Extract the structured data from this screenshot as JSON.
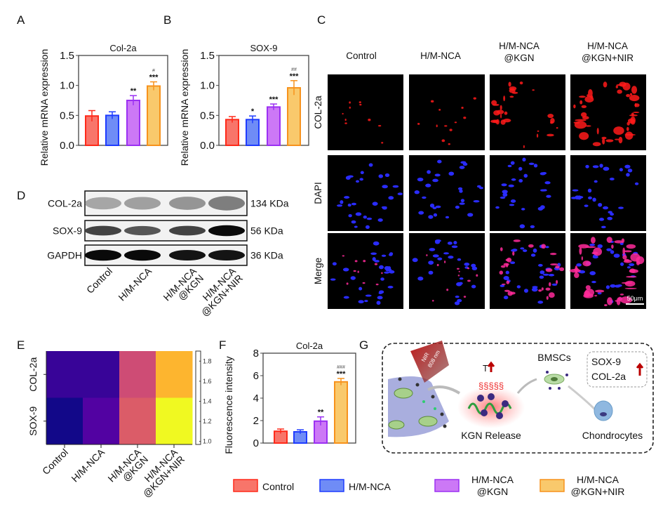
{
  "panels": {
    "a": "A",
    "b": "B",
    "c": "C",
    "d": "D",
    "e": "E",
    "f": "F",
    "g": "G"
  },
  "groups": [
    [
      "Control"
    ],
    [
      "H/M-NCA"
    ],
    [
      "H/M-NCA",
      "@KGN"
    ],
    [
      "H/M-NCA",
      "@KGN+NIR"
    ]
  ],
  "colors": {
    "fills": [
      "#f8756a",
      "#6f8cf6",
      "#cc78f6",
      "#f9c96c"
    ],
    "strokes": [
      "#ff2a1a",
      "#1f3cff",
      "#9b30f2",
      "#f7921c"
    ]
  },
  "chart_data": [
    {
      "id": "A",
      "type": "bar",
      "title": "Col-2a",
      "ylabel": "Relative mRNA expression",
      "ylim": [
        0,
        1.5
      ],
      "yticks": [
        "0.0",
        "0.5",
        "1.0",
        "1.5"
      ],
      "categories": [
        "Control",
        "H/M-NCA",
        "H/M-NCA@KGN",
        "H/M-NCA@KGN+NIR"
      ],
      "values": [
        0.49,
        0.5,
        0.75,
        0.99
      ],
      "errors": [
        0.09,
        0.06,
        0.08,
        0.07
      ],
      "significance": [
        "",
        "",
        "**",
        "***"
      ],
      "significance_vs_group": [
        "",
        "",
        "",
        "#"
      ]
    },
    {
      "id": "B",
      "type": "bar",
      "title": "SOX-9",
      "ylabel": "Relative mRNA expression",
      "ylim": [
        0,
        1.5
      ],
      "yticks": [
        "0.0",
        "0.5",
        "1.0",
        "1.5"
      ],
      "categories": [
        "Control",
        "H/M-NCA",
        "H/M-NCA@KGN",
        "H/M-NCA@KGN+NIR"
      ],
      "values": [
        0.43,
        0.43,
        0.64,
        0.96
      ],
      "errors": [
        0.05,
        0.06,
        0.05,
        0.12
      ],
      "significance": [
        "",
        "*",
        "***",
        "***"
      ],
      "significance_vs_group": [
        "",
        "",
        "",
        "##"
      ]
    },
    {
      "id": "E",
      "type": "heatmap",
      "rows": [
        "COL-2a",
        "SOX-9"
      ],
      "columns": [
        "Control",
        "H/M-NCA",
        "H/M-NCA@KGN",
        "H/M-NCA@KGN+NIR"
      ],
      "values": [
        [
          1.05,
          1.05,
          1.45,
          1.75
        ],
        [
          0.98,
          1.1,
          1.5,
          1.9
        ]
      ],
      "colorbar_ticks": [
        "1.8",
        "1.6",
        "1.4",
        "1.2",
        "1.0"
      ],
      "colorbar_range": [
        0.97,
        1.9
      ],
      "colormap": "plasma"
    },
    {
      "id": "F",
      "type": "bar",
      "title": "Col-2a",
      "ylabel": "Fluorescence intensity",
      "ylim": [
        0,
        8
      ],
      "yticks": [
        "0",
        "2",
        "4",
        "6",
        "8"
      ],
      "categories": [
        "Control",
        "H/M-NCA",
        "H/M-NCA@KGN",
        "H/M-NCA@KGN+NIR"
      ],
      "values": [
        1.05,
        1.0,
        1.95,
        5.45
      ],
      "errors": [
        0.2,
        0.18,
        0.38,
        0.3
      ],
      "significance": [
        "",
        "",
        "**",
        "***"
      ],
      "significance_vs_group": [
        "",
        "",
        "",
        "###"
      ]
    }
  ],
  "panel_c": {
    "columns": [
      [
        "Control"
      ],
      [
        "H/M-NCA"
      ],
      [
        "H/M-NCA",
        "@KGN"
      ],
      [
        "H/M-NCA",
        "@KGN+NIR"
      ]
    ],
    "rows": [
      "COL-2a",
      "DAPI",
      "Merge"
    ],
    "red_intensity": [
      0.15,
      0.2,
      0.6,
      1.0
    ],
    "scale_bar": "50μm"
  },
  "panel_d": {
    "rows": [
      {
        "label": "COL-2a",
        "size": "134 KDa",
        "intensity": [
          0.45,
          0.5,
          0.6,
          0.8
        ]
      },
      {
        "label": "SOX-9",
        "size": "56 KDa",
        "intensity": [
          0.7,
          0.6,
          0.7,
          1.0
        ]
      },
      {
        "label": "GAPDH",
        "size": "36 KDa",
        "intensity": [
          1.0,
          1.0,
          0.95,
          0.95
        ]
      }
    ]
  },
  "panel_g": {
    "nir": "NIR",
    "wavelength": "808 nm",
    "temp": "T",
    "release": "KGN Release",
    "bmscs": "BMSCs",
    "chondrocytes": "Chondrocytes",
    "markers": [
      "SOX-9",
      "COL-2a"
    ]
  },
  "legend": [
    [
      "Control"
    ],
    [
      "H/M-NCA"
    ],
    [
      "H/M-NCA",
      "@KGN"
    ],
    [
      "H/M-NCA",
      "@KGN+NIR"
    ]
  ]
}
